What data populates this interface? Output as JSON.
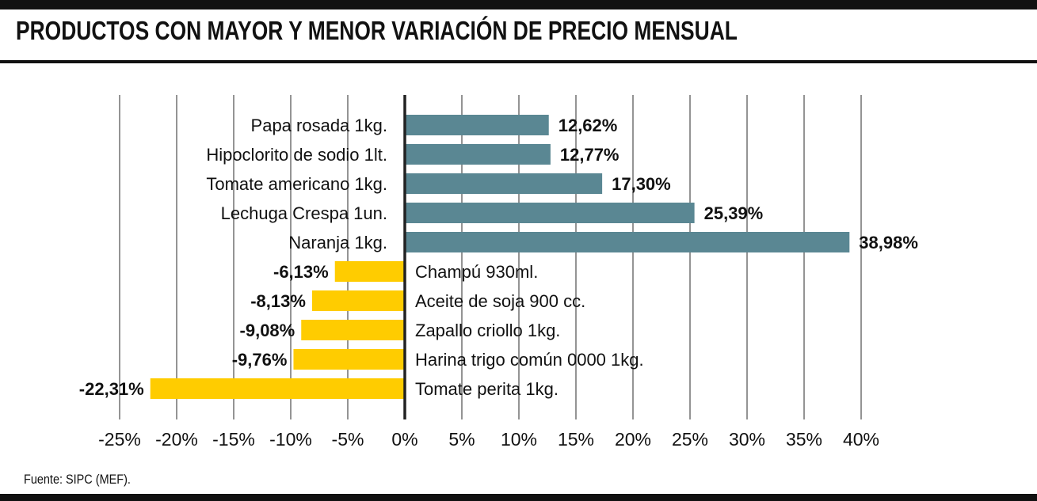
{
  "title": "PRODUCTOS CON MAYOR Y MENOR VARIACIÓN DE PRECIO MENSUAL",
  "source": "Fuente: SIPC (MEF).",
  "colors": {
    "positive": "#5a8793",
    "negative": "#ffcc00",
    "grid": "#2a2a2a"
  },
  "chart_data": {
    "type": "bar",
    "orientation": "horizontal",
    "title": "PRODUCTOS CON MAYOR Y MENOR VARIACIÓN DE PRECIO MENSUAL",
    "xlim": [
      -25,
      40
    ],
    "ticks": [
      -25,
      -20,
      -15,
      -10,
      -5,
      0,
      5,
      10,
      15,
      20,
      25,
      30,
      35,
      40
    ],
    "tick_labels": [
      "-25%",
      "-20%",
      "-15%",
      "-10%",
      "-5%",
      "0%",
      "5%",
      "10%",
      "15%",
      "20%",
      "25%",
      "30%",
      "35%",
      "40%"
    ],
    "grid": true,
    "categories": [
      "Papa rosada 1kg.",
      "Hipoclorito de sodio 1lt.",
      "Tomate americano 1kg.",
      "Lechuga Crespa 1un.",
      "Naranja 1kg.",
      "Champú 930ml.",
      "Aceite de soja 900 cc.",
      "Zapallo criollo 1kg.",
      "Harina trigo común 0000 1kg.",
      "Tomate perita 1kg."
    ],
    "values": [
      12.62,
      12.77,
      17.3,
      25.39,
      38.98,
      -6.13,
      -8.13,
      -9.08,
      -9.76,
      -22.31
    ],
    "value_labels": [
      "12,62%",
      "12,77%",
      "17,30%",
      "25,39%",
      "38,98%",
      "-6,13%",
      "-8,13%",
      "-9,08%",
      "-9,76%",
      "-22,31%"
    ]
  }
}
